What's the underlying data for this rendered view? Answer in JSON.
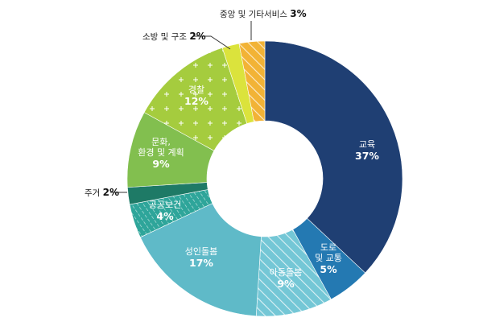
{
  "chart_data": {
    "type": "pie",
    "variant": "donut",
    "title": "",
    "slices": [
      {
        "label": [
          "교육"
        ],
        "pct_text": "37%",
        "value": 37,
        "color": "#1f3f73",
        "pattern": "none",
        "label_pos": "inside"
      },
      {
        "label": [
          "도로",
          "및 교통"
        ],
        "pct_text": "5%",
        "value": 5,
        "color": "#2479b2",
        "pattern": "none",
        "label_pos": "inside"
      },
      {
        "label": [
          "아동돌봄"
        ],
        "pct_text": "9%",
        "value": 9,
        "color": "#74c7d6",
        "pattern": "diagonal-lines",
        "label_pos": "inside"
      },
      {
        "label": [
          "성인돌봄"
        ],
        "pct_text": "17%",
        "value": 17,
        "color": "#5fbac8",
        "pattern": "none",
        "label_pos": "inside"
      },
      {
        "label": [
          "공공보건"
        ],
        "pct_text": "4%",
        "value": 4,
        "color": "#2ea59a",
        "pattern": "dots",
        "label_pos": "inside"
      },
      {
        "label": [
          "주거"
        ],
        "pct_text": "2%",
        "value": 2,
        "color": "#1e7a66",
        "pattern": "none",
        "label_pos": "outside"
      },
      {
        "label": [
          "문화,",
          "환경 및 계획"
        ],
        "pct_text": "9%",
        "value": 9,
        "color": "#82bf4f",
        "pattern": "none",
        "label_pos": "inside"
      },
      {
        "label": [
          "경찰"
        ],
        "pct_text": "12%",
        "value": 12,
        "color": "#a5cc3e",
        "pattern": "plus",
        "label_pos": "inside"
      },
      {
        "label": [
          "소방 및 구조"
        ],
        "pct_text": "2%",
        "value": 2,
        "color": "#dbe33c",
        "pattern": "none",
        "label_pos": "outside"
      },
      {
        "label": [
          "중앙 및 기타서비스"
        ],
        "pct_text": "3%",
        "value": 3,
        "color": "#f2b336",
        "pattern": "diagonal-lines",
        "label_pos": "outside"
      }
    ]
  }
}
